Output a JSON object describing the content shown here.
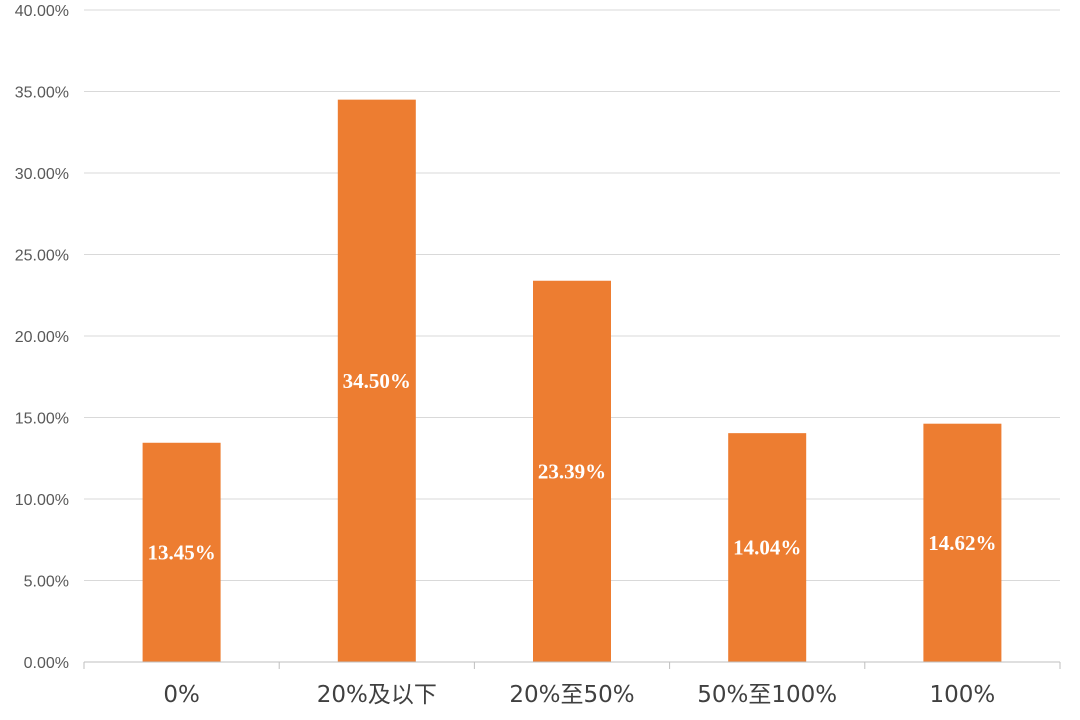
{
  "chart_data": {
    "type": "bar",
    "categories": [
      "0%",
      "20%及以下",
      "20%至50%",
      "50%至100%",
      "100%"
    ],
    "values": [
      13.45,
      34.5,
      23.39,
      14.04,
      14.62
    ],
    "data_labels": [
      "13.45%",
      "34.50%",
      "23.39%",
      "14.04%",
      "14.62%"
    ],
    "ylim": [
      0,
      40
    ],
    "yticks": [
      0,
      5,
      10,
      15,
      20,
      25,
      30,
      35,
      40
    ],
    "ytick_labels": [
      "0.00%",
      "5.00%",
      "10.00%",
      "15.00%",
      "20.00%",
      "25.00%",
      "30.00%",
      "35.00%",
      "40.00%"
    ],
    "title": "",
    "xlabel": "",
    "ylabel": "",
    "grid": true,
    "legend": false,
    "colors": {
      "bar": "#ED7D31",
      "grid": "#D9D9D9",
      "data_label": "#FFFFFF"
    }
  }
}
